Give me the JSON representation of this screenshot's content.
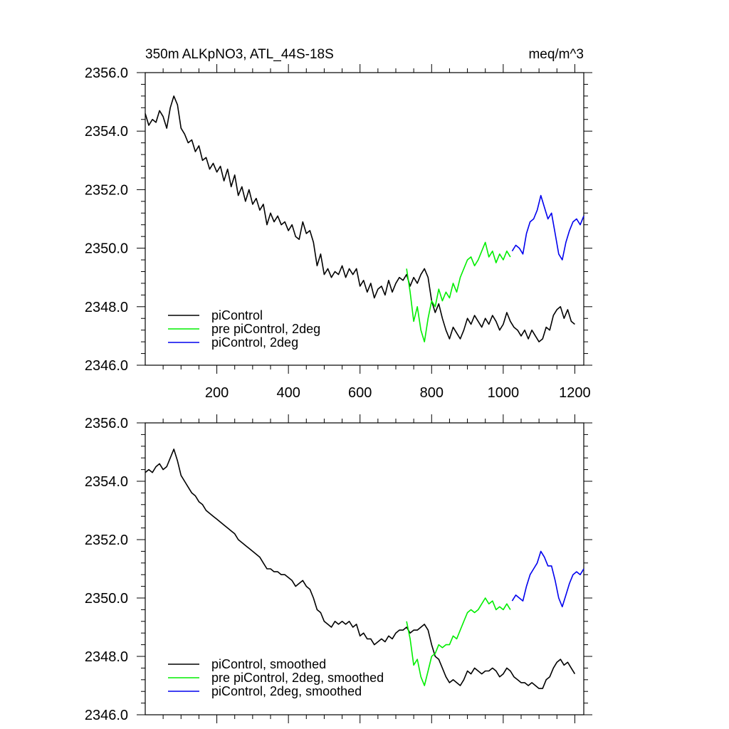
{
  "chart_data": [
    {
      "type": "line",
      "title": "350m ALKpNO3, ATL_44S-18S",
      "units": "meq/m^3",
      "xlim": [
        0,
        1225
      ],
      "ylim": [
        2346.0,
        2356.0
      ],
      "x_tick_values": [
        200,
        400,
        600,
        800,
        1000,
        1200
      ],
      "x_tick_labels": [
        "200",
        "400",
        "600",
        "800",
        "1000",
        "1200"
      ],
      "y_tick_values": [
        2346,
        2348,
        2350,
        2352,
        2354,
        2356
      ],
      "y_tick_labels": [
        "2346.0",
        "2348.0",
        "2350.0",
        "2352.0",
        "2354.0",
        "2356.0"
      ],
      "legend_position": "bottom-left",
      "series": [
        {
          "name": "piControl",
          "color": "#000000",
          "x": [
            0,
            10,
            20,
            30,
            40,
            50,
            60,
            70,
            80,
            90,
            100,
            110,
            120,
            130,
            140,
            150,
            160,
            170,
            180,
            190,
            200,
            210,
            220,
            230,
            240,
            250,
            260,
            270,
            280,
            290,
            300,
            310,
            320,
            330,
            340,
            350,
            360,
            370,
            380,
            390,
            400,
            410,
            420,
            430,
            440,
            450,
            460,
            470,
            480,
            490,
            500,
            510,
            520,
            530,
            540,
            550,
            560,
            570,
            580,
            590,
            600,
            610,
            620,
            630,
            640,
            650,
            660,
            670,
            680,
            690,
            700,
            710,
            720,
            730,
            740,
            750,
            760,
            770,
            780,
            790,
            800,
            810,
            820,
            830,
            840,
            850,
            860,
            870,
            880,
            890,
            900,
            910,
            920,
            930,
            940,
            950,
            960,
            970,
            980,
            990,
            1000,
            1010,
            1020,
            1030,
            1040,
            1050,
            1060,
            1070,
            1080,
            1090,
            1100,
            1110,
            1120,
            1130,
            1140,
            1150,
            1160,
            1170,
            1180,
            1190,
            1200
          ],
          "values": [
            2354.6,
            2354.2,
            2354.4,
            2354.3,
            2354.7,
            2354.5,
            2354.1,
            2354.8,
            2355.2,
            2354.9,
            2354.1,
            2353.9,
            2353.6,
            2353.7,
            2353.3,
            2353.5,
            2353.0,
            2353.1,
            2352.7,
            2352.9,
            2352.6,
            2352.8,
            2352.3,
            2352.7,
            2352.1,
            2352.5,
            2351.8,
            2352.1,
            2351.6,
            2352.0,
            2351.5,
            2351.7,
            2351.3,
            2351.5,
            2350.8,
            2351.2,
            2350.9,
            2351.1,
            2350.8,
            2350.9,
            2350.6,
            2350.8,
            2350.4,
            2350.3,
            2350.9,
            2350.5,
            2350.6,
            2350.2,
            2349.4,
            2349.8,
            2349.1,
            2349.3,
            2349.0,
            2349.2,
            2349.1,
            2349.4,
            2349.0,
            2349.3,
            2349.1,
            2349.3,
            2348.7,
            2348.9,
            2348.5,
            2348.8,
            2348.3,
            2348.6,
            2348.7,
            2348.4,
            2348.9,
            2348.5,
            2348.8,
            2349.0,
            2348.9,
            2349.1,
            2348.7,
            2349.0,
            2348.8,
            2349.1,
            2349.3,
            2349.0,
            2348.2,
            2347.8,
            2348.1,
            2347.6,
            2347.2,
            2346.9,
            2347.3,
            2347.1,
            2346.9,
            2347.2,
            2347.6,
            2347.4,
            2347.7,
            2347.5,
            2347.3,
            2347.6,
            2347.4,
            2347.7,
            2347.5,
            2347.2,
            2347.4,
            2347.8,
            2347.5,
            2347.3,
            2347.2,
            2347.0,
            2347.2,
            2346.9,
            2347.2,
            2347.0,
            2346.8,
            2346.9,
            2347.3,
            2347.2,
            2347.7,
            2347.9,
            2348.0,
            2347.6,
            2347.9,
            2347.5,
            2347.4
          ]
        },
        {
          "name": "pre piControl, 2deg",
          "color": "#00ee00",
          "x": [
            730,
            740,
            750,
            760,
            770,
            780,
            790,
            800,
            810,
            820,
            830,
            840,
            850,
            860,
            870,
            880,
            890,
            900,
            910,
            920,
            930,
            940,
            950,
            960,
            970,
            980,
            990,
            1000,
            1010,
            1020
          ],
          "values": [
            2349.3,
            2348.5,
            2347.5,
            2348.0,
            2347.2,
            2346.8,
            2347.6,
            2348.2,
            2348.0,
            2348.6,
            2348.2,
            2348.5,
            2348.3,
            2348.8,
            2348.5,
            2349.0,
            2349.3,
            2349.6,
            2349.7,
            2349.4,
            2349.6,
            2349.9,
            2350.2,
            2349.7,
            2349.9,
            2349.5,
            2349.8,
            2349.6,
            2349.9,
            2349.7
          ]
        },
        {
          "name": "piControl, 2deg",
          "color": "#0000ee",
          "x": [
            1025,
            1035,
            1045,
            1055,
            1065,
            1075,
            1085,
            1095,
            1105,
            1115,
            1125,
            1135,
            1145,
            1155,
            1165,
            1175,
            1185,
            1195,
            1205,
            1215,
            1225
          ],
          "values": [
            2349.9,
            2350.1,
            2350.0,
            2349.8,
            2350.5,
            2350.9,
            2351.0,
            2351.3,
            2351.8,
            2351.4,
            2351.0,
            2351.2,
            2350.5,
            2349.8,
            2349.6,
            2350.2,
            2350.6,
            2350.9,
            2351.0,
            2350.8,
            2351.1
          ]
        }
      ]
    },
    {
      "type": "line",
      "title": "",
      "units": "",
      "xlim": [
        0,
        1225
      ],
      "ylim": [
        2346.0,
        2356.0
      ],
      "x_tick_values": [
        200,
        400,
        600,
        800,
        1000,
        1200
      ],
      "x_tick_labels": [],
      "y_tick_values": [
        2346,
        2348,
        2350,
        2352,
        2354,
        2356
      ],
      "y_tick_labels": [
        "2346.0",
        "2348.0",
        "2350.0",
        "2352.0",
        "2354.0",
        "2356.0"
      ],
      "legend_position": "bottom-left",
      "series": [
        {
          "name": "piControl, smoothed",
          "color": "#000000",
          "x": [
            0,
            10,
            20,
            30,
            40,
            50,
            60,
            70,
            80,
            90,
            100,
            110,
            120,
            130,
            140,
            150,
            160,
            170,
            180,
            190,
            200,
            210,
            220,
            230,
            240,
            250,
            260,
            270,
            280,
            290,
            300,
            310,
            320,
            330,
            340,
            350,
            360,
            370,
            380,
            390,
            400,
            410,
            420,
            430,
            440,
            450,
            460,
            470,
            480,
            490,
            500,
            510,
            520,
            530,
            540,
            550,
            560,
            570,
            580,
            590,
            600,
            610,
            620,
            630,
            640,
            650,
            660,
            670,
            680,
            690,
            700,
            710,
            720,
            730,
            740,
            750,
            760,
            770,
            780,
            790,
            800,
            810,
            820,
            830,
            840,
            850,
            860,
            870,
            880,
            890,
            900,
            910,
            920,
            930,
            940,
            950,
            960,
            970,
            980,
            990,
            1000,
            1010,
            1020,
            1030,
            1040,
            1050,
            1060,
            1070,
            1080,
            1090,
            1100,
            1110,
            1120,
            1130,
            1140,
            1150,
            1160,
            1170,
            1180,
            1190,
            1200
          ],
          "values": [
            2354.3,
            2354.4,
            2354.3,
            2354.5,
            2354.6,
            2354.4,
            2354.5,
            2354.8,
            2355.1,
            2354.7,
            2354.2,
            2354.0,
            2353.8,
            2353.6,
            2353.5,
            2353.3,
            2353.2,
            2353.0,
            2352.9,
            2352.8,
            2352.7,
            2352.6,
            2352.5,
            2352.4,
            2352.3,
            2352.2,
            2352.0,
            2351.9,
            2351.8,
            2351.7,
            2351.6,
            2351.5,
            2351.4,
            2351.2,
            2351.0,
            2351.0,
            2350.9,
            2350.9,
            2350.8,
            2350.8,
            2350.7,
            2350.6,
            2350.4,
            2350.5,
            2350.6,
            2350.4,
            2350.3,
            2350.0,
            2349.6,
            2349.5,
            2349.2,
            2349.1,
            2349.0,
            2349.2,
            2349.1,
            2349.2,
            2349.1,
            2349.2,
            2349.0,
            2349.1,
            2348.7,
            2348.8,
            2348.6,
            2348.6,
            2348.4,
            2348.5,
            2348.6,
            2348.5,
            2348.7,
            2348.6,
            2348.8,
            2348.9,
            2348.9,
            2349.0,
            2348.8,
            2348.9,
            2348.9,
            2349.0,
            2349.1,
            2348.9,
            2348.4,
            2348.0,
            2347.9,
            2347.6,
            2347.3,
            2347.1,
            2347.2,
            2347.1,
            2347.0,
            2347.2,
            2347.5,
            2347.4,
            2347.6,
            2347.5,
            2347.4,
            2347.5,
            2347.5,
            2347.6,
            2347.5,
            2347.3,
            2347.4,
            2347.6,
            2347.5,
            2347.3,
            2347.2,
            2347.1,
            2347.1,
            2347.0,
            2347.1,
            2347.0,
            2346.9,
            2346.9,
            2347.2,
            2347.3,
            2347.6,
            2347.8,
            2347.9,
            2347.7,
            2347.8,
            2347.6,
            2347.4
          ]
        },
        {
          "name": "pre piControl, 2deg, smoothed",
          "color": "#00ee00",
          "x": [
            730,
            740,
            750,
            760,
            770,
            780,
            790,
            800,
            810,
            820,
            830,
            840,
            850,
            860,
            870,
            880,
            890,
            900,
            910,
            920,
            930,
            940,
            950,
            960,
            970,
            980,
            990,
            1000,
            1010,
            1020
          ],
          "values": [
            2349.2,
            2348.6,
            2347.7,
            2347.9,
            2347.3,
            2347.0,
            2347.5,
            2348.0,
            2348.1,
            2348.4,
            2348.3,
            2348.4,
            2348.4,
            2348.7,
            2348.6,
            2348.9,
            2349.2,
            2349.5,
            2349.6,
            2349.5,
            2349.6,
            2349.8,
            2350.0,
            2349.8,
            2349.9,
            2349.6,
            2349.7,
            2349.6,
            2349.8,
            2349.6
          ]
        },
        {
          "name": "piControl, 2deg, smoothed",
          "color": "#0000ee",
          "x": [
            1025,
            1035,
            1045,
            1055,
            1065,
            1075,
            1085,
            1095,
            1105,
            1115,
            1125,
            1135,
            1145,
            1155,
            1165,
            1175,
            1185,
            1195,
            1205,
            1215,
            1225
          ],
          "values": [
            2349.9,
            2350.1,
            2350.0,
            2349.9,
            2350.4,
            2350.8,
            2351.0,
            2351.2,
            2351.6,
            2351.4,
            2351.1,
            2351.1,
            2350.6,
            2350.0,
            2349.7,
            2350.1,
            2350.5,
            2350.8,
            2350.9,
            2350.8,
            2351.0
          ]
        }
      ]
    }
  ]
}
